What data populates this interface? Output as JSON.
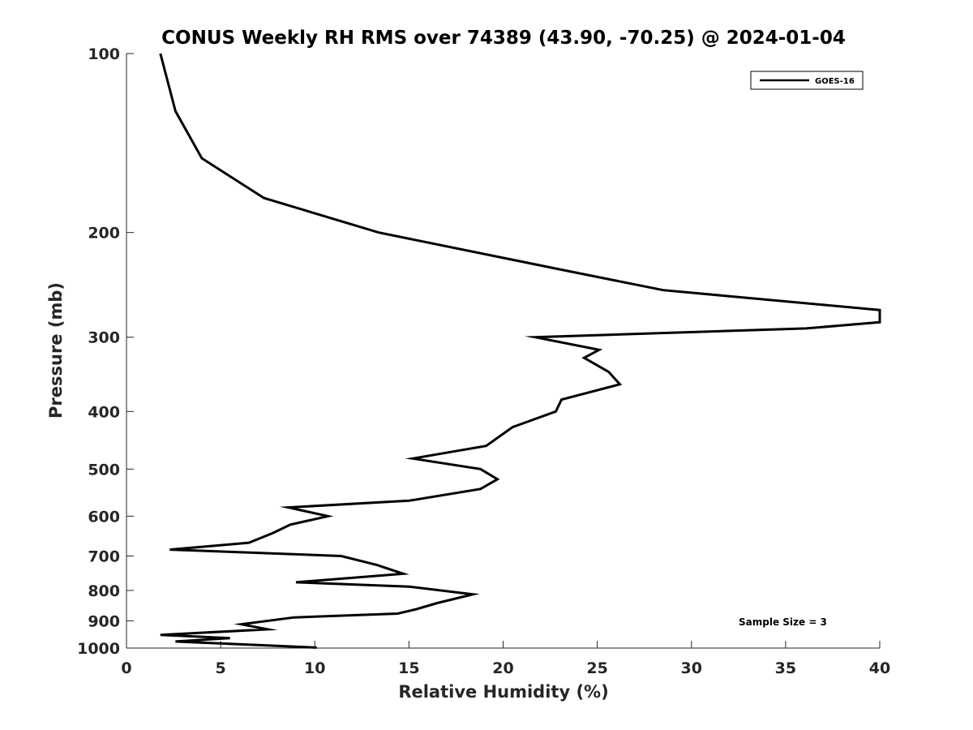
{
  "chart_data": {
    "type": "line",
    "title": "CONUS Weekly RH RMS over 74389 (43.90, -70.25) @ 2024-01-04",
    "xlabel": "Relative Humidity (%)",
    "ylabel": "Pressure (mb)",
    "xlim": [
      0,
      40
    ],
    "ylim": [
      100,
      1000
    ],
    "y_scale": "log",
    "y_reversed": true,
    "grid": false,
    "legend_position": "top-right",
    "x_ticks": [
      0,
      5,
      10,
      15,
      20,
      25,
      30,
      35,
      40
    ],
    "y_ticks": [
      100,
      200,
      300,
      400,
      500,
      600,
      700,
      800,
      900,
      1000
    ],
    "series": [
      {
        "name": "GOES-16",
        "color": "#000000",
        "points": [
          [
            1.8,
            100
          ],
          [
            2.6,
            125
          ],
          [
            4.0,
            150
          ],
          [
            7.3,
            175
          ],
          [
            13.4,
            200
          ],
          [
            22.8,
            230
          ],
          [
            28.5,
            250
          ],
          [
            40.0,
            270
          ],
          [
            40.0,
            283
          ],
          [
            36.1,
            290
          ],
          [
            21.7,
            300
          ],
          [
            25.1,
            315
          ],
          [
            24.3,
            325
          ],
          [
            25.6,
            343
          ],
          [
            26.2,
            360
          ],
          [
            23.1,
            382
          ],
          [
            22.8,
            400
          ],
          [
            20.5,
            425
          ],
          [
            19.1,
            457
          ],
          [
            15.2,
            480
          ],
          [
            18.8,
            500
          ],
          [
            19.7,
            520
          ],
          [
            18.8,
            540
          ],
          [
            15.0,
            565
          ],
          [
            8.6,
            580
          ],
          [
            10.7,
            600
          ],
          [
            8.7,
            620
          ],
          [
            7.8,
            640
          ],
          [
            6.5,
            665
          ],
          [
            2.3,
            683
          ],
          [
            11.4,
            700
          ],
          [
            13.3,
            725
          ],
          [
            14.7,
            750
          ],
          [
            9.0,
            775
          ],
          [
            15.0,
            788
          ],
          [
            18.4,
            812
          ],
          [
            16.5,
            840
          ],
          [
            15.4,
            860
          ],
          [
            14.4,
            875
          ],
          [
            8.9,
            888
          ],
          [
            6.1,
            912
          ],
          [
            7.5,
            930
          ],
          [
            1.8,
            950
          ],
          [
            5.5,
            962
          ],
          [
            2.6,
            975
          ],
          [
            10.1,
            998
          ]
        ]
      }
    ],
    "annotations": [
      "Sample Size = 3"
    ]
  }
}
